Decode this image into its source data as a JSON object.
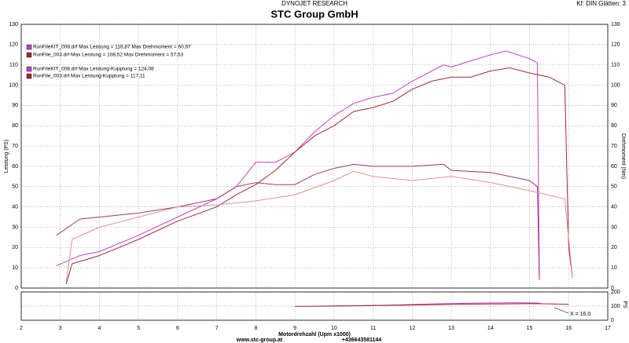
{
  "header": {
    "brand": "DYNOJET RESEARCH",
    "settings": "Kf: DIN  Glätten: 3"
  },
  "footer": {
    "website": "www.stc-group.at",
    "phone": "+436643581144"
  },
  "chart_data": [
    {
      "type": "line",
      "title": "STC Group GmbH",
      "x_label": "Motordrehzahl (Upm x1000)",
      "y_label": "Leistung (PS)",
      "y2_label": "Drehmoment (Nm)",
      "xlim": [
        2,
        17
      ],
      "xticks": [
        2,
        3,
        4,
        5,
        6,
        7,
        8,
        9,
        10,
        11,
        12,
        13,
        14,
        15,
        16,
        17
      ],
      "ylim": [
        0,
        130
      ],
      "yticks": [
        0,
        10,
        20,
        30,
        40,
        50,
        60,
        70,
        80,
        90,
        100,
        110,
        120,
        130
      ],
      "y2lim": [
        0,
        130
      ],
      "y2ticks": [
        0,
        10,
        20,
        30,
        40,
        50,
        60,
        70,
        80,
        90,
        100,
        110,
        120,
        130
      ],
      "grid": true,
      "legend": [
        {
          "label": "RunFileKIT_008.drf Max Leistung = 116,87     Max Drehmoment = 60,97",
          "color": "#c040c0"
        },
        {
          "label": "RunFile_003.drf Max Leistung = 108,52     Max Drehmoment = 57,53",
          "color": "#a02838"
        },
        {
          "label": "RunFileKIT_008.drf Max Leistung-Kupplung = 124,08",
          "color": "#c040c0"
        },
        {
          "label": "RunFile_003.drf Max Leistung-Kupplung = 117,11",
          "color": "#a02838"
        }
      ],
      "series": [
        {
          "color": "#c040c0",
          "x": [
            2.9,
            3.5,
            4,
            5,
            6,
            7,
            7.5,
            8,
            8.5,
            9,
            9.5,
            10,
            10.5,
            11,
            11.5,
            12,
            12.5,
            12.8,
            13,
            13.5,
            14,
            14.4,
            15,
            15.2,
            15.25
          ],
          "values": [
            11,
            16,
            18,
            26,
            35,
            44,
            50,
            62,
            62,
            67,
            77,
            85,
            91,
            94,
            96,
            102,
            107,
            110,
            109,
            112,
            115,
            116.87,
            113,
            111,
            4
          ]
        },
        {
          "color": "#a03080",
          "axis": "y2",
          "x": [
            2.9,
            3.2,
            3.5,
            4,
            5,
            6,
            7,
            7.5,
            8,
            8.5,
            9,
            9.5,
            10,
            10.5,
            11,
            12,
            12.8,
            13,
            14,
            15,
            15.2,
            15.25
          ],
          "values": [
            26,
            30,
            34,
            35,
            37,
            40,
            44,
            50,
            52,
            51,
            51,
            56,
            59,
            60.97,
            60,
            60,
            61,
            58,
            57,
            53,
            50,
            4
          ]
        },
        {
          "color": "#a02838",
          "x": [
            3.15,
            3.3,
            4,
            5,
            6,
            7,
            7.5,
            8,
            8.5,
            9,
            9.5,
            10,
            10.5,
            11,
            11.5,
            12,
            12.5,
            13,
            13.5,
            14,
            14.5,
            15,
            15.5,
            15.9,
            16,
            16.1
          ],
          "values": [
            2,
            12,
            16,
            24,
            33,
            40,
            46,
            51,
            58,
            67,
            75,
            80,
            87,
            89,
            92,
            98,
            102,
            104,
            104,
            107,
            108.52,
            106,
            104,
            100,
            20,
            5
          ]
        },
        {
          "color": "#e09090",
          "axis": "y2",
          "x": [
            3.15,
            3.3,
            4,
            5,
            6,
            7,
            8,
            9,
            10,
            10.5,
            11,
            12,
            13,
            14,
            15,
            15.9,
            16.1
          ],
          "values": [
            3,
            24,
            30,
            35,
            40,
            41,
            43,
            46,
            53,
            57.53,
            55,
            53,
            55,
            52,
            48,
            44,
            5
          ]
        }
      ]
    },
    {
      "type": "line",
      "y2_label": "PS",
      "ylim": [
        0,
        200
      ],
      "yticks": [
        0,
        100,
        200
      ],
      "annotation": "X = 16,0",
      "series": [
        {
          "color": "#c040c0",
          "x": [
            9.5,
            10.5,
            11.5,
            12.5,
            13.5,
            14.5,
            15.2,
            15.3
          ],
          "values": [
            100,
            103,
            108,
            115,
            121,
            124.08,
            122,
            118
          ]
        },
        {
          "color": "#a02838",
          "x": [
            9,
            10,
            11,
            12,
            13,
            14,
            15,
            15.5,
            16
          ],
          "values": [
            98,
            100,
            104,
            108,
            112,
            115,
            117.11,
            116,
            112
          ]
        }
      ]
    }
  ]
}
